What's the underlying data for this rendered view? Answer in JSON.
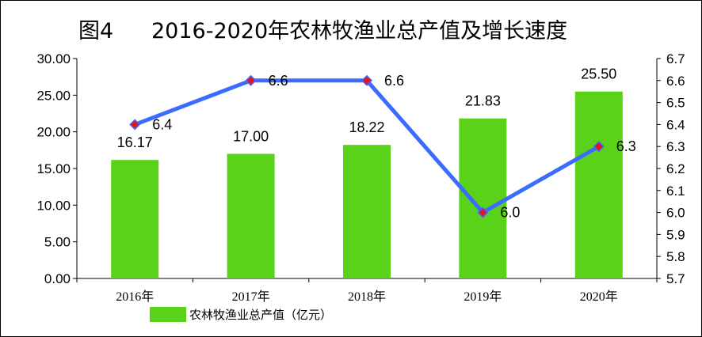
{
  "chart_data": {
    "type": "bar",
    "title_prefix": "图4",
    "title": "2016-2020年农林牧渔业总产值及增长速度",
    "categories": [
      "2016年",
      "2017年",
      "2018年",
      "2019年",
      "2020年"
    ],
    "series": [
      {
        "name": "农林牧渔业总产值（亿元）",
        "type": "bar",
        "axis": "left",
        "color": "#5bd21a",
        "values": [
          16.17,
          17.0,
          18.22,
          21.83,
          25.5
        ],
        "labels": [
          "16.17",
          "17.00",
          "18.22",
          "21.83",
          "25.50"
        ]
      },
      {
        "type": "line",
        "axis": "right",
        "color": "#3b6bff",
        "marker_color": "#e8121b",
        "values": [
          6.4,
          6.6,
          6.6,
          6.0,
          6.3
        ],
        "labels": [
          "6.4",
          "6.6",
          "6.6",
          "6.0",
          "6.3"
        ]
      }
    ],
    "y_left": {
      "range": [
        0,
        30
      ],
      "ticks": [
        "0.00",
        "5.00",
        "10.00",
        "15.00",
        "20.00",
        "25.00",
        "30.00"
      ]
    },
    "y_right": {
      "range": [
        5.7,
        6.7
      ],
      "ticks": [
        "5.7",
        "5.8",
        "5.9",
        "6.0",
        "6.1",
        "6.2",
        "6.3",
        "6.4",
        "6.5",
        "6.6",
        "6.7"
      ]
    },
    "grid": false,
    "legend_position": "bottom-left"
  }
}
